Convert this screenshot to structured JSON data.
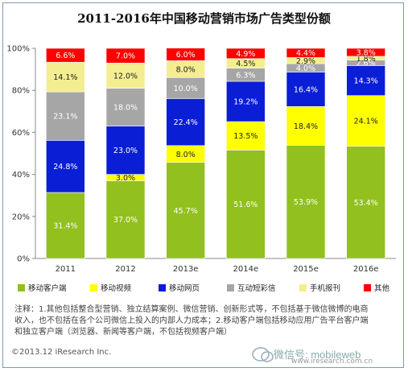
{
  "title": "2011-2016年中国移动营销市场广告类型份额",
  "chart_data": {
    "type": "bar",
    "stacked": true,
    "categories": [
      "2011",
      "2012",
      "2013e",
      "2014e",
      "2015e",
      "2016e"
    ],
    "ylim": [
      0,
      100
    ],
    "yticks": [
      "0%",
      "20%",
      "40%",
      "60%",
      "80%",
      "100%"
    ],
    "series": [
      {
        "name": "移动客户端",
        "color": "#92c01e",
        "values": [
          31.4,
          37.0,
          45.7,
          51.6,
          53.9,
          53.4
        ],
        "labels": [
          "31.4%",
          "37.0%",
          "45.7%",
          "51.6%",
          "53.9%",
          "53.4%"
        ]
      },
      {
        "name": "移动视频",
        "color": "#ffff00",
        "values": [
          0.0,
          3.0,
          8.0,
          13.5,
          18.4,
          24.1
        ],
        "labels": [
          "",
          "3.0%",
          "8.0%",
          "13.5%",
          "18.4%",
          "24.1%"
        ]
      },
      {
        "name": "移动网页",
        "color": "#0a1ed6",
        "values": [
          24.8,
          23.0,
          22.4,
          19.2,
          16.4,
          14.3
        ],
        "labels": [
          "24.8%",
          "23.0%",
          "22.4%",
          "19.2%",
          "16.4%",
          "14.3%"
        ]
      },
      {
        "name": "互动短彩信",
        "color": "#a6a6a6",
        "values": [
          23.1,
          18.0,
          10.0,
          6.3,
          4.0,
          2.6
        ],
        "labels": [
          "23.1%",
          "18.0%",
          "10.0%",
          "6.3%",
          "4.0%",
          "2.6%"
        ]
      },
      {
        "name": "手机报刊",
        "color": "#f4ee91",
        "values": [
          14.1,
          12.0,
          8.0,
          4.5,
          2.9,
          1.8
        ],
        "labels": [
          "14.1%",
          "12.0%",
          "8.0%",
          "4.5%",
          "2.9%",
          "1.8%"
        ]
      },
      {
        "name": "其他",
        "color": "#ff0000",
        "values": [
          6.6,
          7.0,
          6.0,
          4.9,
          4.4,
          3.8
        ],
        "labels": [
          "6.6%",
          "7.0%",
          "6.0%",
          "4.9%",
          "4.4%",
          "3.8%"
        ]
      }
    ]
  },
  "notes": {
    "line1": "注释：1.其他包括整合型营销、独立结算案例、微信营销、创新形式等，不包括基于微信微博的电商",
    "line2": "收入，也不包括在各个公司微信上投入的内部人力成本；2.移动客户端包括移动应用广告平台客户端",
    "line3": "和独立客户端（浏览器、新闻等客户端，不包括视频客户端）"
  },
  "copyright": "©2013.12 iResearch Inc.",
  "watermark": {
    "text": "微信号: mobileweb",
    "sub": "www.iresearch.com.cn"
  }
}
